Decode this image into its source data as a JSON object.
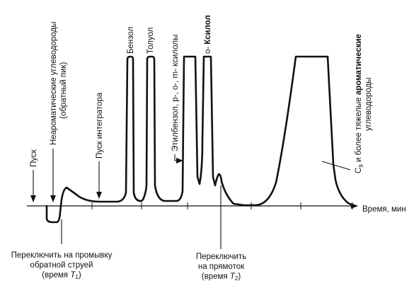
{
  "labels": {
    "start": "Пуск",
    "nonaromatic_1": "Неароматические углеводороды",
    "nonaromatic_2": "(обратный пик)",
    "integrator_start": "Пуск интегратора",
    "benzene": "Бензол",
    "toluene": "Толуол",
    "ethylbenzene_xylenes": "Этилбензол, p-, o-, m- ксилолы",
    "o_xylene_prefix": "о-",
    "o_xylene_name": "Ксилол",
    "heavy_1_pre": "C",
    "heavy_1_sub": "9",
    "heavy_1_mid": " и более тяжелые ",
    "heavy_1_bold": "ароматические",
    "heavy_2": "углеводороды",
    "time_axis": "Время, мин",
    "backflush_1": "Переключить на промывку",
    "backflush_2": "обратной струей",
    "backflush_3_pre": "(время ",
    "backflush_3_var": "T",
    "backflush_3_sub": "1",
    "backflush_3_post": ")",
    "forward_1": "Переключить",
    "forward_2": "на прямоток",
    "forward_3_pre": "(время ",
    "forward_3_var": "T",
    "forward_3_sub": "2",
    "forward_3_post": ")"
  },
  "colors": {
    "ink": "#111111",
    "background": "#ffffff"
  }
}
